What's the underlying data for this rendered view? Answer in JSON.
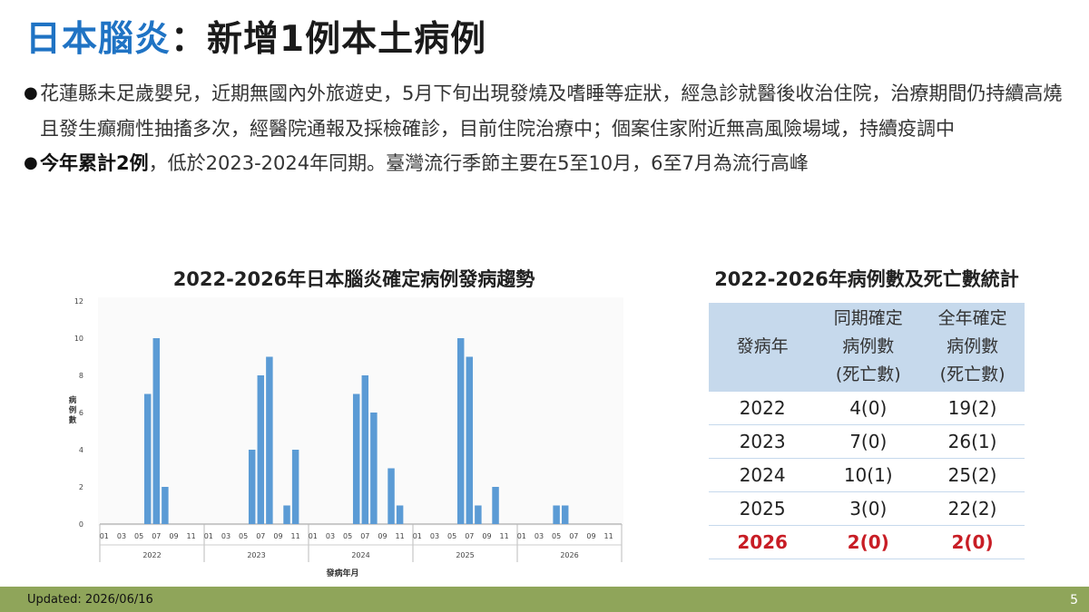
{
  "slide": {
    "title_part1": "日本腦炎",
    "title_part2": "：新增1例本土病例",
    "bullet1": "花蓮縣未足歲嬰兒，近期無國內外旅遊史，5月下旬出現發燒及嗜睡等症狀，經急診就醫後收治住院，治療期間仍持續高燒且發生癲癇性抽搐多次，經醫院通報及採檢確診，目前住院治療中；個案住家附近無高風險場域，持續疫調中",
    "bullet2_bold": "今年累計2例",
    "bullet2_rest": "，低於2023-2024年同期。臺灣流行季節主要在5至10月，6至7月為流行高峰",
    "footer_updated": "Updated: 2026/06/16",
    "page_number": "5"
  },
  "chart_data": {
    "type": "bar",
    "title": "2022-2026年日本腦炎確定病例發病趨勢",
    "xlabel": "發病年月",
    "ylabel": "病例數",
    "ylim": [
      0,
      12
    ],
    "yticks": [
      0,
      2,
      4,
      6,
      8,
      10,
      12
    ],
    "years": [
      "2022",
      "2023",
      "2024",
      "2025",
      "2026"
    ],
    "months": [
      "01",
      "02",
      "03",
      "04",
      "05",
      "06",
      "07",
      "08",
      "09",
      "10",
      "11",
      "12"
    ],
    "month_tick_labels": [
      "01",
      "03",
      "05",
      "07",
      "09",
      "11"
    ],
    "color": "#5b9bd5",
    "values": {
      "2022": [
        0,
        0,
        0,
        0,
        0,
        7,
        10,
        2,
        0,
        0,
        0,
        0
      ],
      "2023": [
        0,
        0,
        0,
        0,
        0,
        4,
        8,
        9,
        0,
        1,
        4,
        0
      ],
      "2024": [
        0,
        0,
        0,
        0,
        0,
        7,
        8,
        6,
        0,
        3,
        1,
        0
      ],
      "2025": [
        0,
        0,
        0,
        0,
        0,
        10,
        9,
        1,
        0,
        2,
        0,
        0
      ],
      "2026": [
        0,
        0,
        0,
        0,
        1,
        1,
        0,
        0,
        0,
        0,
        0,
        0
      ]
    }
  },
  "table": {
    "title": "2022-2026年病例數及死亡數統計",
    "headers": {
      "col1": "發病年",
      "col2_l1": "同期確定",
      "col2_l2": "病例數",
      "col2_l3": "(死亡數)",
      "col3_l1": "全年確定",
      "col3_l2": "病例數",
      "col3_l3": "(死亡數)"
    },
    "rows": [
      {
        "year": "2022",
        "same_period": "4(0)",
        "full_year": "19(2)"
      },
      {
        "year": "2023",
        "same_period": "7(0)",
        "full_year": "26(1)"
      },
      {
        "year": "2024",
        "same_period": "10(1)",
        "full_year": "25(2)"
      },
      {
        "year": "2025",
        "same_period": "3(0)",
        "full_year": "22(2)"
      },
      {
        "year": "2026",
        "same_period": "2(0)",
        "full_year": "2(0)"
      }
    ]
  }
}
